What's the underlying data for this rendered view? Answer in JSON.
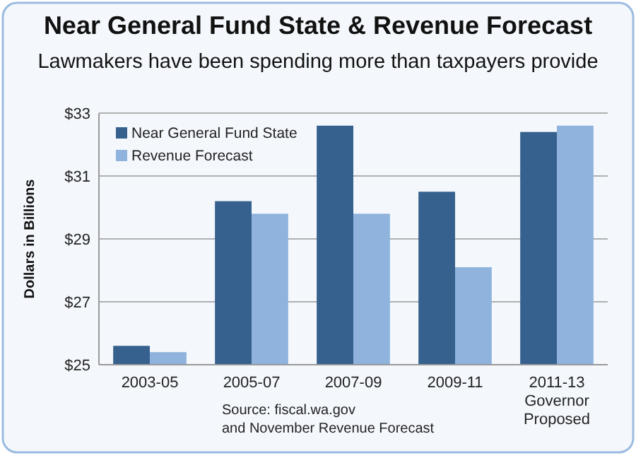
{
  "chart_data": {
    "type": "bar",
    "title": "Near General Fund State & Revenue Forecast",
    "subtitle": "Lawmakers have been spending more than taxpayers provide",
    "ylabel": "Dollars in Billions",
    "categories": [
      "2003-05",
      "2005-07",
      "2007-09",
      "2009-11",
      "2011-13\nGovernor\nProposed"
    ],
    "series": [
      {
        "name": "Near General Fund State",
        "color": "#36618f",
        "values": [
          25.6,
          30.2,
          32.6,
          30.5,
          32.4
        ]
      },
      {
        "name": "Revenue Forecast",
        "color": "#8fb3dd",
        "values": [
          25.4,
          29.8,
          29.8,
          28.1,
          32.6
        ]
      }
    ],
    "ylim": [
      25,
      33
    ],
    "yticks": [
      {
        "value": 25,
        "label": "$25"
      },
      {
        "value": 27,
        "label": "$27"
      },
      {
        "value": 29,
        "label": "$29"
      },
      {
        "value": 31,
        "label": "$31"
      },
      {
        "value": 33,
        "label": "$33"
      }
    ],
    "grid": "y",
    "legend": "top left",
    "annotations": [
      "Source: fiscal.wa.gov\nand November Revenue Forecast"
    ]
  }
}
